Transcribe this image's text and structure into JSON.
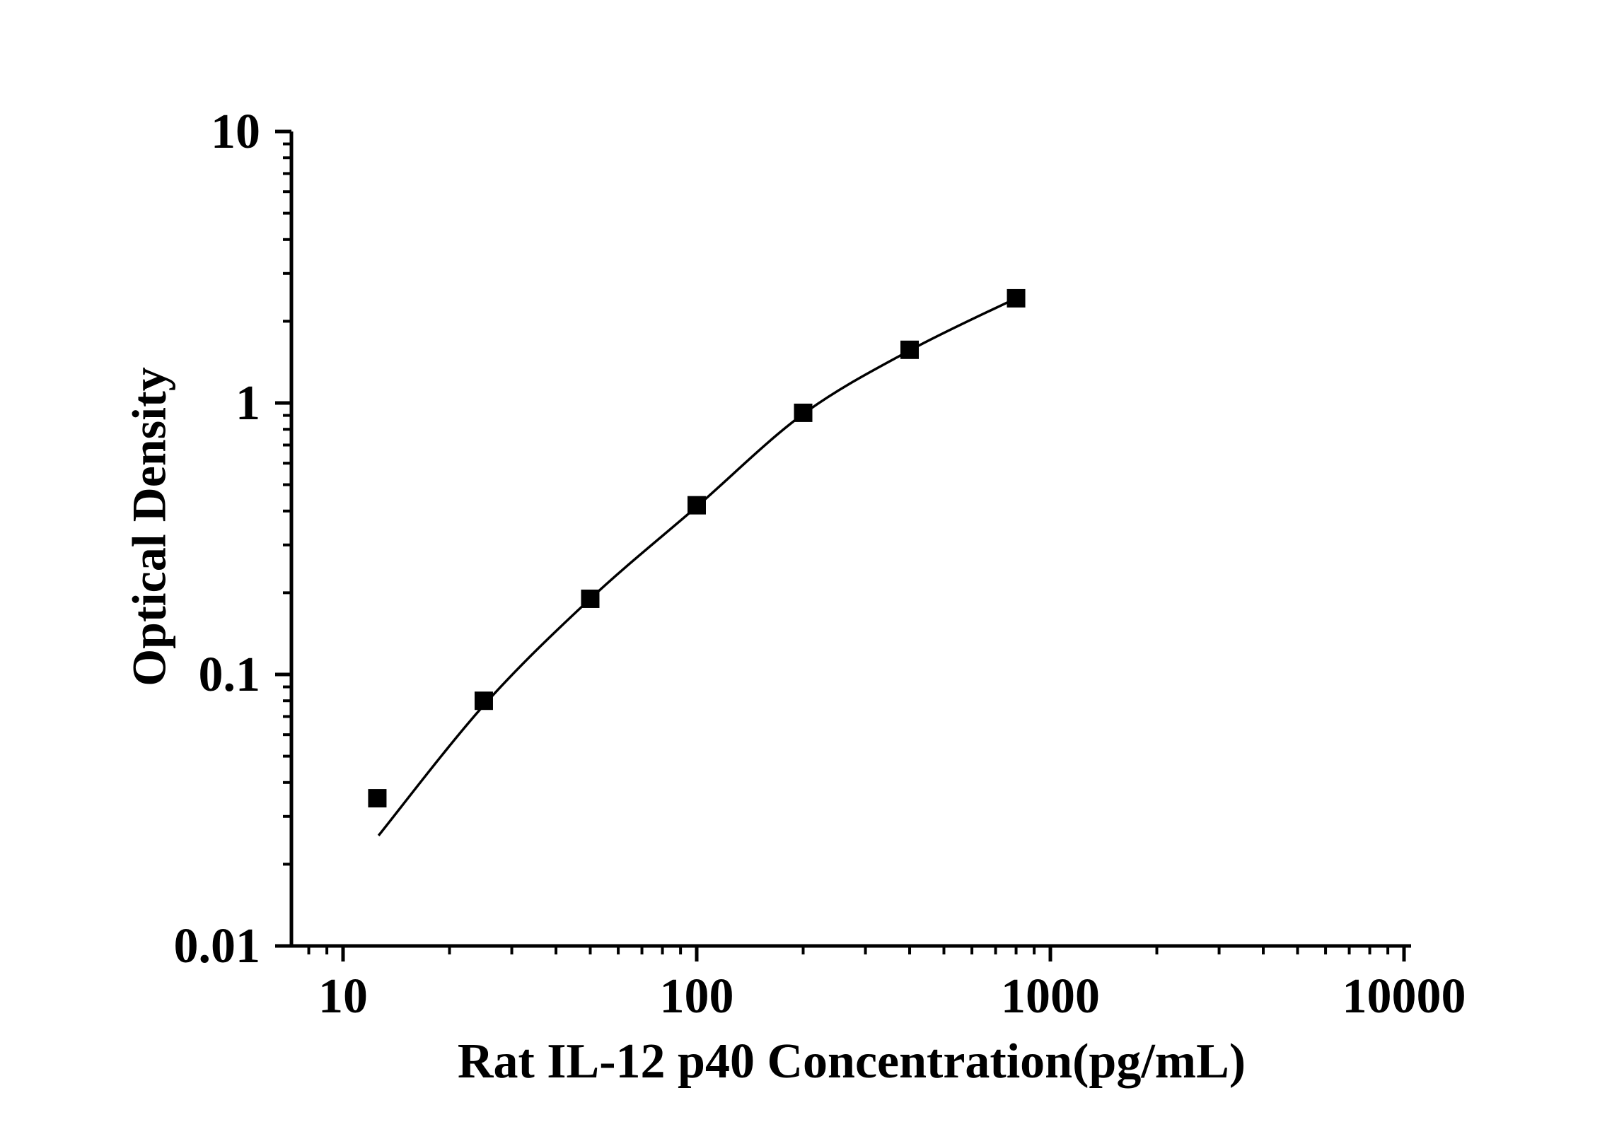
{
  "figure": {
    "background_color": "#ffffff",
    "axis_color": "#000000",
    "marker_color": "#000000",
    "line_color": "#000000"
  },
  "chart_data": {
    "type": "scatter",
    "title": "",
    "xlabel": "Rat IL-12 p40 Concentration(pg/mL)",
    "ylabel": "Optical Density",
    "x_scale": "log",
    "y_scale": "log",
    "xlim": [
      7,
      10000
    ],
    "ylim": [
      0.01,
      10
    ],
    "x_ticks": [
      10,
      100,
      1000,
      10000
    ],
    "x_tick_labels": [
      "10",
      "100",
      "1000",
      "10000"
    ],
    "y_ticks": [
      0.01,
      0.1,
      1,
      10
    ],
    "y_tick_labels": [
      "0.01",
      "0.1",
      "1",
      "10"
    ],
    "grid": false,
    "legend": null,
    "marker": "filled-square",
    "series": [
      {
        "name": "standard-points",
        "x": [
          12.5,
          25,
          50,
          100,
          200,
          400,
          800
        ],
        "y": [
          0.035,
          0.08,
          0.19,
          0.42,
          0.92,
          1.57,
          2.43
        ]
      }
    ],
    "fit_curve": {
      "name": "4pl-fit-line",
      "x": [
        12.6,
        25,
        50,
        100,
        200,
        400,
        800
      ],
      "y": [
        0.0255,
        0.077,
        0.19,
        0.415,
        0.91,
        1.56,
        2.43
      ]
    }
  }
}
